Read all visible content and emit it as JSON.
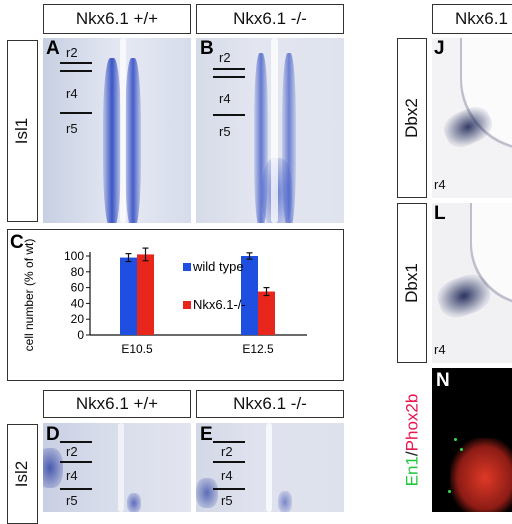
{
  "top": {
    "header_wt": "Nkx6.1 +/+",
    "header_ko": "Nkx6.1 -/-",
    "row_label": "Isl1",
    "panel_a": "A",
    "panel_b": "B",
    "r_labels": [
      "r2",
      "r4",
      "r5"
    ]
  },
  "chart_panel": {
    "panel_c": "C",
    "chart_data": {
      "type": "bar",
      "categories": [
        "E10.5",
        "E12.5"
      ],
      "series": [
        {
          "name": "wild type",
          "values": [
            98,
            100
          ],
          "errors": [
            5,
            4
          ],
          "color": "#1f4fe0"
        },
        {
          "name": "Nkx6.1-/-",
          "values": [
            102,
            55
          ],
          "errors": [
            8,
            5
          ],
          "color": "#e8261b"
        }
      ],
      "ylabel": "cell number (% of wt)",
      "yticks": [
        "0",
        "20",
        "40",
        "60",
        "80",
        "100"
      ],
      "ylim": [
        0,
        115
      ],
      "legend": "inside-right"
    }
  },
  "bottom": {
    "header_wt": "Nkx6.1 +/+",
    "header_ko": "Nkx6.1 -/-",
    "row_label": "Isl2",
    "panel_d": "D",
    "panel_e": "E",
    "r_labels": [
      "r2",
      "r4",
      "r5"
    ]
  },
  "right": {
    "header": "Nkx6.1",
    "row1_label": "Dbx2",
    "row2_label": "Dbx1",
    "row3_label_a": "En1",
    "row3_label_sep": "/",
    "row3_label_b": "Phox2b",
    "panel_j": "J",
    "panel_l": "L",
    "panel_n": "N",
    "r4_label": "r4"
  }
}
